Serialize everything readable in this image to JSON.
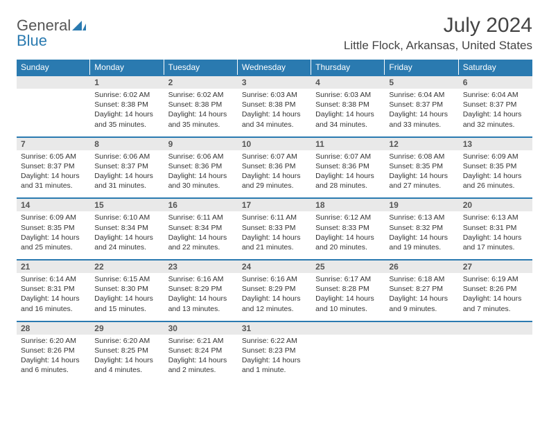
{
  "brand": {
    "name_a": "General",
    "name_b": "Blue"
  },
  "title": "July 2024",
  "subtitle": "Little Flock, Arkansas, United States",
  "colors": {
    "header_bg": "#2a7ab0",
    "header_fg": "#ffffff",
    "daynum_bg": "#e9e9e9",
    "daynum_fg": "#555555",
    "rule": "#2a7ab0",
    "text": "#333333",
    "page_bg": "#ffffff"
  },
  "fontsizes": {
    "title": 30,
    "subtitle": 17,
    "day_header": 12,
    "daynum": 12,
    "cell": 10.5,
    "logo": 22
  },
  "day_headers": [
    "Sunday",
    "Monday",
    "Tuesday",
    "Wednesday",
    "Thursday",
    "Friday",
    "Saturday"
  ],
  "weeks": [
    [
      {
        "n": "",
        "sr": "",
        "ss": "",
        "dl": ""
      },
      {
        "n": "1",
        "sr": "6:02 AM",
        "ss": "8:38 PM",
        "dl": "14 hours and 35 minutes."
      },
      {
        "n": "2",
        "sr": "6:02 AM",
        "ss": "8:38 PM",
        "dl": "14 hours and 35 minutes."
      },
      {
        "n": "3",
        "sr": "6:03 AM",
        "ss": "8:38 PM",
        "dl": "14 hours and 34 minutes."
      },
      {
        "n": "4",
        "sr": "6:03 AM",
        "ss": "8:38 PM",
        "dl": "14 hours and 34 minutes."
      },
      {
        "n": "5",
        "sr": "6:04 AM",
        "ss": "8:37 PM",
        "dl": "14 hours and 33 minutes."
      },
      {
        "n": "6",
        "sr": "6:04 AM",
        "ss": "8:37 PM",
        "dl": "14 hours and 32 minutes."
      }
    ],
    [
      {
        "n": "7",
        "sr": "6:05 AM",
        "ss": "8:37 PM",
        "dl": "14 hours and 31 minutes."
      },
      {
        "n": "8",
        "sr": "6:06 AM",
        "ss": "8:37 PM",
        "dl": "14 hours and 31 minutes."
      },
      {
        "n": "9",
        "sr": "6:06 AM",
        "ss": "8:36 PM",
        "dl": "14 hours and 30 minutes."
      },
      {
        "n": "10",
        "sr": "6:07 AM",
        "ss": "8:36 PM",
        "dl": "14 hours and 29 minutes."
      },
      {
        "n": "11",
        "sr": "6:07 AM",
        "ss": "8:36 PM",
        "dl": "14 hours and 28 minutes."
      },
      {
        "n": "12",
        "sr": "6:08 AM",
        "ss": "8:35 PM",
        "dl": "14 hours and 27 minutes."
      },
      {
        "n": "13",
        "sr": "6:09 AM",
        "ss": "8:35 PM",
        "dl": "14 hours and 26 minutes."
      }
    ],
    [
      {
        "n": "14",
        "sr": "6:09 AM",
        "ss": "8:35 PM",
        "dl": "14 hours and 25 minutes."
      },
      {
        "n": "15",
        "sr": "6:10 AM",
        "ss": "8:34 PM",
        "dl": "14 hours and 24 minutes."
      },
      {
        "n": "16",
        "sr": "6:11 AM",
        "ss": "8:34 PM",
        "dl": "14 hours and 22 minutes."
      },
      {
        "n": "17",
        "sr": "6:11 AM",
        "ss": "8:33 PM",
        "dl": "14 hours and 21 minutes."
      },
      {
        "n": "18",
        "sr": "6:12 AM",
        "ss": "8:33 PM",
        "dl": "14 hours and 20 minutes."
      },
      {
        "n": "19",
        "sr": "6:13 AM",
        "ss": "8:32 PM",
        "dl": "14 hours and 19 minutes."
      },
      {
        "n": "20",
        "sr": "6:13 AM",
        "ss": "8:31 PM",
        "dl": "14 hours and 17 minutes."
      }
    ],
    [
      {
        "n": "21",
        "sr": "6:14 AM",
        "ss": "8:31 PM",
        "dl": "14 hours and 16 minutes."
      },
      {
        "n": "22",
        "sr": "6:15 AM",
        "ss": "8:30 PM",
        "dl": "14 hours and 15 minutes."
      },
      {
        "n": "23",
        "sr": "6:16 AM",
        "ss": "8:29 PM",
        "dl": "14 hours and 13 minutes."
      },
      {
        "n": "24",
        "sr": "6:16 AM",
        "ss": "8:29 PM",
        "dl": "14 hours and 12 minutes."
      },
      {
        "n": "25",
        "sr": "6:17 AM",
        "ss": "8:28 PM",
        "dl": "14 hours and 10 minutes."
      },
      {
        "n": "26",
        "sr": "6:18 AM",
        "ss": "8:27 PM",
        "dl": "14 hours and 9 minutes."
      },
      {
        "n": "27",
        "sr": "6:19 AM",
        "ss": "8:26 PM",
        "dl": "14 hours and 7 minutes."
      }
    ],
    [
      {
        "n": "28",
        "sr": "6:20 AM",
        "ss": "8:26 PM",
        "dl": "14 hours and 6 minutes."
      },
      {
        "n": "29",
        "sr": "6:20 AM",
        "ss": "8:25 PM",
        "dl": "14 hours and 4 minutes."
      },
      {
        "n": "30",
        "sr": "6:21 AM",
        "ss": "8:24 PM",
        "dl": "14 hours and 2 minutes."
      },
      {
        "n": "31",
        "sr": "6:22 AM",
        "ss": "8:23 PM",
        "dl": "14 hours and 1 minute."
      },
      {
        "n": "",
        "sr": "",
        "ss": "",
        "dl": ""
      },
      {
        "n": "",
        "sr": "",
        "ss": "",
        "dl": ""
      },
      {
        "n": "",
        "sr": "",
        "ss": "",
        "dl": ""
      }
    ]
  ]
}
